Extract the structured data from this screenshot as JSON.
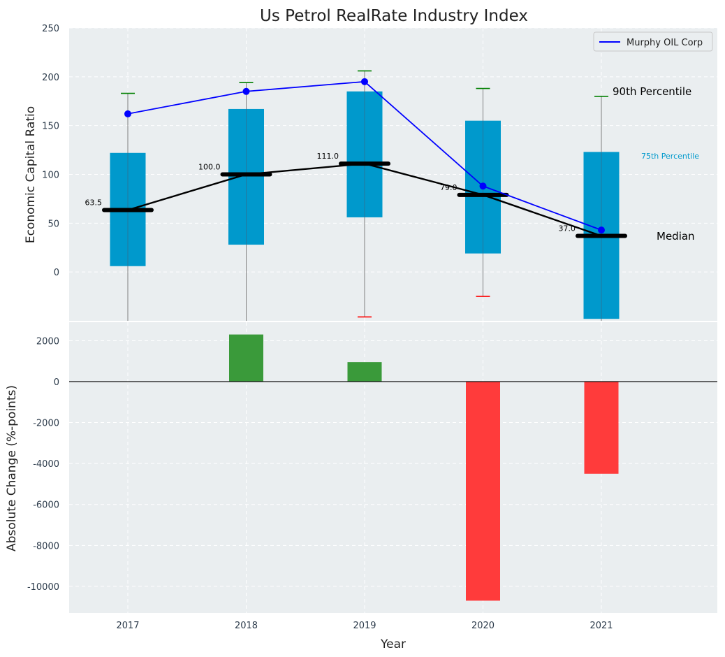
{
  "chart_data": [
    {
      "type": "box",
      "title": "Us Petrol RealRate Industry Index",
      "ylabel": "Economic Capital Ratio",
      "ylim": [
        -50,
        250
      ],
      "yticks": [
        0,
        50,
        100,
        150,
        200,
        250
      ],
      "categories": [
        "2017",
        "2018",
        "2019",
        "2020",
        "2021"
      ],
      "grid": true,
      "legend_position": "top-right",
      "colors": {
        "box": "#0099cc",
        "median": "#000000",
        "company": "#0000ff",
        "whisker_top": "#008000",
        "whisker_bottom": "#ff0000",
        "whisker_line": "#808080"
      },
      "boxes": [
        {
          "year": "2017",
          "q1": 6,
          "q3": 122,
          "median": 63.5,
          "p90": 183,
          "p10": null
        },
        {
          "year": "2018",
          "q1": 28,
          "q3": 167,
          "median": 100.0,
          "p90": 194,
          "p10": null
        },
        {
          "year": "2019",
          "q1": 56,
          "q3": 185,
          "median": 111.0,
          "p90": 206,
          "p10": -46
        },
        {
          "year": "2020",
          "q1": 19,
          "q3": 155,
          "median": 79.0,
          "p90": 188,
          "p10": -25
        },
        {
          "year": "2021",
          "q1": -48,
          "q3": 123,
          "median": 37.0,
          "p90": 180,
          "p10": null
        }
      ],
      "median_labels": [
        "63.5",
        "100.0",
        "111.0",
        "79.0",
        "37.0"
      ],
      "company_series": {
        "name": "Murphy OIL Corp",
        "values": [
          162,
          185,
          195,
          88,
          43
        ]
      },
      "annotations": {
        "p90": "90th Percentile",
        "p75": "75th Percentile",
        "median": "Median"
      }
    },
    {
      "type": "bar",
      "ylabel": "Absolute Change (%-points)",
      "xlabel": "Year",
      "ylim": [
        -11300,
        2900
      ],
      "yticks": [
        -10000,
        -8000,
        -6000,
        -4000,
        -2000,
        0,
        2000
      ],
      "categories": [
        "2017",
        "2018",
        "2019",
        "2020",
        "2021"
      ],
      "values": [
        0,
        2300,
        950,
        -10700,
        -4500
      ],
      "colors": {
        "positive": "#3a9a3a",
        "negative": "#ff3b3b"
      }
    }
  ]
}
